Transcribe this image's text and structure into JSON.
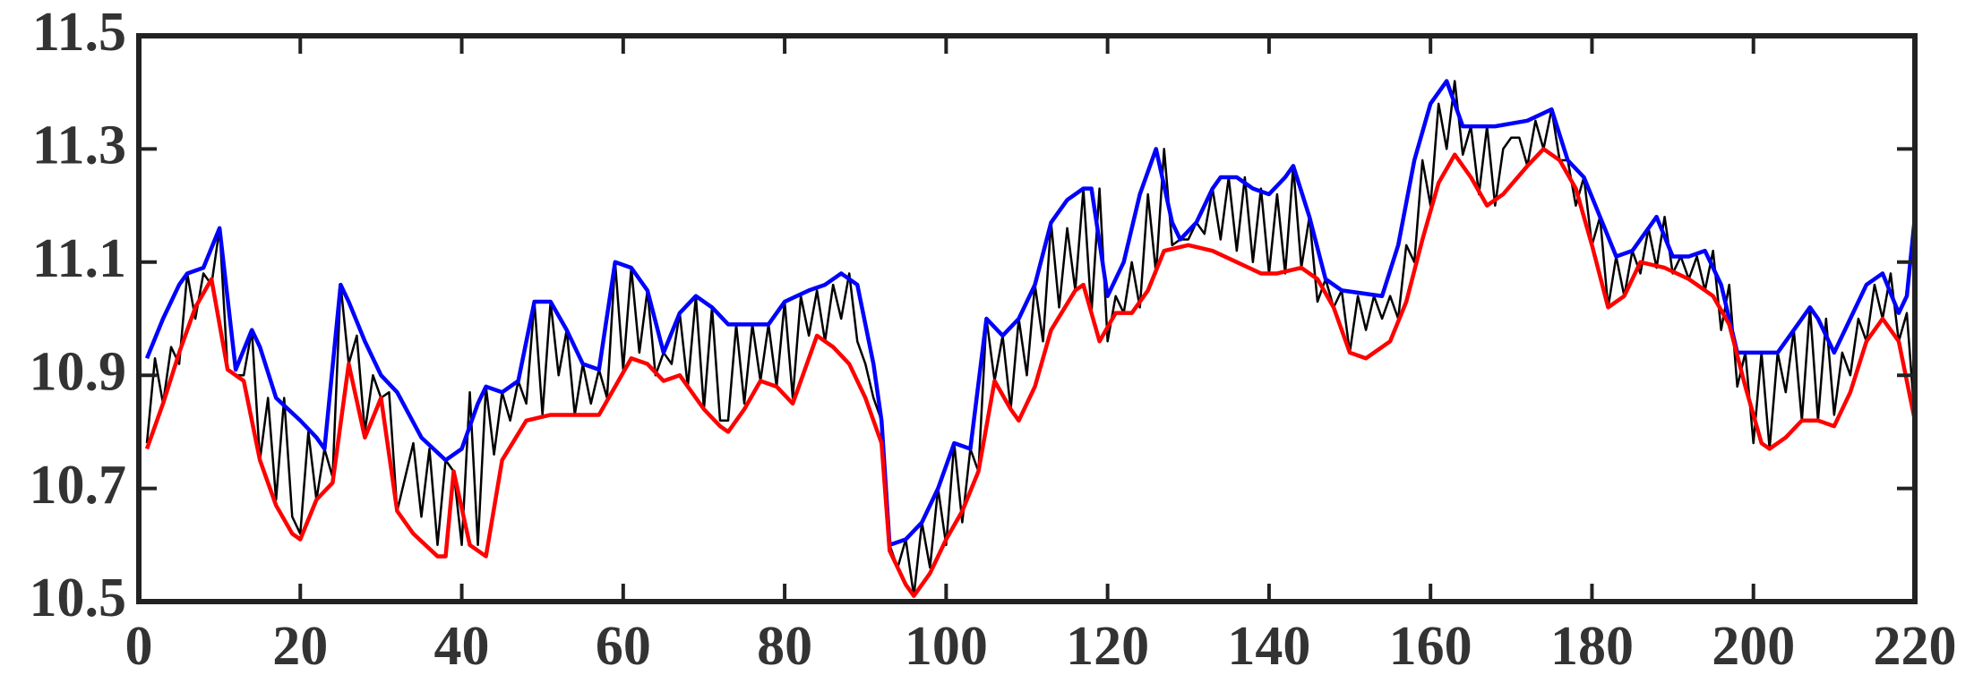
{
  "chart_data": {
    "type": "line",
    "xlim": [
      0,
      220
    ],
    "xticks": [
      0,
      20,
      40,
      60,
      80,
      100,
      120,
      140,
      160,
      180,
      200,
      220
    ],
    "ylim": [
      10.5,
      11.5
    ],
    "yticks": [
      10.5,
      10.7,
      10.9,
      11.1,
      11.3,
      11.5
    ],
    "grid": false,
    "series": [
      {
        "color": "#000000",
        "x": [
          1,
          2,
          3,
          4,
          5,
          6,
          7,
          8,
          9,
          10,
          11,
          12,
          13,
          14,
          15,
          16,
          17,
          18,
          19,
          20,
          21,
          22,
          23,
          24,
          25,
          26,
          27,
          28,
          29,
          30,
          31,
          32,
          33,
          34,
          35,
          36,
          37,
          38,
          39,
          40,
          41,
          42,
          43,
          44,
          45,
          46,
          47,
          48,
          49,
          50,
          51,
          52,
          53,
          54,
          55,
          56,
          57,
          58,
          59,
          60,
          61,
          62,
          63,
          64,
          65,
          66,
          67,
          68,
          69,
          70,
          71,
          72,
          73,
          74,
          75,
          76,
          77,
          78,
          79,
          80,
          81,
          82,
          83,
          84,
          85,
          86,
          87,
          88,
          89,
          90,
          91,
          92,
          93,
          94,
          95,
          96,
          97,
          98,
          99,
          100,
          101,
          102,
          103,
          104,
          105,
          106,
          107,
          108,
          109,
          110,
          111,
          112,
          113,
          114,
          115,
          116,
          117,
          118,
          119,
          120,
          121,
          122,
          123,
          124,
          125,
          126,
          127,
          128,
          129,
          130,
          131,
          132,
          133,
          134,
          135,
          136,
          137,
          138,
          139,
          140,
          141,
          142,
          143,
          144,
          145,
          146,
          147,
          148,
          149,
          150,
          151,
          152,
          153,
          154,
          155,
          156,
          157,
          158,
          159,
          160,
          161,
          162,
          163,
          164,
          165,
          166,
          167,
          168,
          169,
          170,
          171,
          172,
          173,
          174,
          175,
          176,
          177,
          178,
          179,
          180,
          181,
          182,
          183,
          184,
          185,
          186,
          187,
          188,
          189,
          190,
          191,
          192,
          193,
          194,
          195,
          196,
          197,
          198,
          199,
          200,
          201,
          202,
          203,
          204,
          205,
          206,
          207,
          208,
          209,
          210,
          211,
          212,
          213,
          214,
          215,
          216,
          217,
          218,
          219,
          220
        ],
        "values": [
          10.78,
          10.93,
          10.85,
          10.95,
          10.92,
          11.08,
          11.0,
          11.08,
          11.06,
          11.16,
          10.91,
          10.9,
          10.9,
          10.98,
          10.75,
          10.86,
          10.68,
          10.86,
          10.65,
          10.62,
          10.8,
          10.68,
          10.77,
          10.72,
          11.06,
          10.92,
          10.97,
          10.8,
          10.9,
          10.86,
          10.87,
          10.66,
          10.72,
          10.78,
          10.65,
          10.77,
          10.6,
          10.75,
          10.73,
          10.6,
          10.87,
          10.6,
          10.88,
          10.76,
          10.87,
          10.82,
          10.89,
          10.85,
          11.03,
          10.83,
          11.03,
          10.9,
          10.98,
          10.83,
          10.92,
          10.85,
          10.91,
          10.86,
          11.1,
          10.91,
          11.09,
          10.94,
          11.05,
          10.9,
          10.94,
          10.92,
          11.01,
          10.88,
          11.04,
          10.84,
          11.02,
          10.82,
          10.82,
          10.99,
          10.85,
          10.99,
          10.89,
          10.99,
          10.88,
          11.03,
          10.86,
          11.04,
          10.97,
          11.05,
          10.96,
          11.06,
          11.0,
          11.08,
          10.96,
          10.92,
          10.86,
          10.82,
          10.6,
          10.56,
          10.61,
          10.51,
          10.64,
          10.56,
          10.7,
          10.6,
          10.78,
          10.64,
          10.77,
          10.73,
          11.0,
          10.89,
          10.97,
          10.84,
          11.0,
          10.9,
          11.06,
          10.96,
          11.17,
          11.02,
          11.16,
          11.05,
          11.23,
          11.01,
          11.23,
          10.96,
          11.04,
          11.01,
          11.1,
          11.02,
          11.22,
          11.08,
          11.3,
          11.13,
          11.14,
          11.14,
          11.17,
          11.15,
          11.23,
          11.14,
          11.25,
          11.12,
          11.25,
          11.1,
          11.23,
          11.08,
          11.22,
          11.08,
          11.27,
          11.09,
          11.18,
          11.03,
          11.07,
          11.02,
          11.05,
          10.94,
          11.04,
          10.98,
          11.04,
          11.0,
          11.04,
          11.0,
          11.13,
          11.1,
          11.28,
          11.2,
          11.38,
          11.3,
          11.42,
          11.29,
          11.34,
          11.22,
          11.34,
          11.2,
          11.3,
          11.32,
          11.32,
          11.27,
          11.35,
          11.3,
          11.37,
          11.28,
          11.28,
          11.2,
          11.25,
          11.13,
          11.18,
          11.02,
          11.11,
          11.04,
          11.12,
          11.08,
          11.16,
          11.09,
          11.18,
          11.08,
          11.11,
          11.07,
          11.11,
          11.05,
          11.12,
          10.98,
          11.06,
          10.88,
          10.94,
          10.78,
          10.94,
          10.77,
          10.94,
          10.87,
          10.98,
          10.82,
          11.02,
          10.82,
          11.0,
          10.83,
          10.94,
          10.9,
          11.0,
          10.96,
          11.06,
          11.0,
          11.08,
          10.96,
          11.01,
          10.82
        ]
      },
      {
        "color": "#0000ff",
        "x": [
          1,
          3,
          5,
          6,
          8,
          10,
          12,
          14,
          15,
          17,
          20,
          22,
          23,
          25,
          26,
          28,
          30,
          32,
          35,
          38,
          40,
          42,
          43,
          45,
          47,
          49,
          51,
          53,
          55,
          57,
          59,
          61,
          63,
          65,
          67,
          69,
          71,
          73,
          76,
          78,
          80,
          83,
          85,
          87,
          89,
          91,
          92,
          93,
          95,
          97,
          99,
          101,
          103,
          105,
          107,
          109,
          111,
          113,
          115,
          117,
          118,
          120,
          122,
          124,
          126,
          128,
          129,
          131,
          133,
          134,
          136,
          138,
          140,
          142,
          143,
          145,
          147,
          149,
          154,
          156,
          158,
          160,
          162,
          164,
          168,
          172,
          175,
          177,
          179,
          181,
          183,
          185,
          187,
          188,
          190,
          192,
          194,
          196,
          198,
          200,
          203,
          205,
          207,
          208,
          210,
          212,
          214,
          216,
          218,
          219,
          220
        ],
        "values": [
          10.93,
          11.0,
          11.06,
          11.08,
          11.09,
          11.16,
          10.91,
          10.98,
          10.95,
          10.86,
          10.82,
          10.79,
          10.77,
          11.06,
          11.03,
          10.96,
          10.9,
          10.87,
          10.79,
          10.75,
          10.77,
          10.85,
          10.88,
          10.87,
          10.89,
          11.03,
          11.03,
          10.98,
          10.92,
          10.91,
          11.1,
          11.09,
          11.05,
          10.94,
          11.01,
          11.04,
          11.02,
          10.99,
          10.99,
          10.99,
          11.03,
          11.05,
          11.06,
          11.08,
          11.06,
          10.92,
          10.82,
          10.6,
          10.61,
          10.64,
          10.7,
          10.78,
          10.77,
          11.0,
          10.97,
          11.0,
          11.06,
          11.17,
          11.21,
          11.23,
          11.23,
          11.04,
          11.1,
          11.22,
          11.3,
          11.17,
          11.14,
          11.17,
          11.23,
          11.25,
          11.25,
          11.23,
          11.22,
          11.25,
          11.27,
          11.18,
          11.07,
          11.05,
          11.04,
          11.13,
          11.28,
          11.38,
          11.42,
          11.34,
          11.34,
          11.35,
          11.37,
          11.28,
          11.25,
          11.18,
          11.11,
          11.12,
          11.16,
          11.18,
          11.11,
          11.11,
          11.12,
          11.06,
          10.94,
          10.94,
          10.94,
          10.98,
          11.02,
          11.0,
          10.94,
          11.0,
          11.06,
          11.08,
          11.01,
          11.04,
          11.18
        ]
      },
      {
        "color": "#ff0000",
        "x": [
          1,
          3,
          5,
          7,
          9,
          11,
          13,
          15,
          17,
          19,
          20,
          22,
          24,
          26,
          28,
          30,
          31,
          32,
          34,
          37,
          38,
          39,
          41,
          43,
          45,
          48,
          51,
          55,
          57,
          59,
          61,
          63,
          65,
          67,
          70,
          72,
          73,
          75,
          77,
          79,
          81,
          84,
          86,
          88,
          90,
          92,
          93,
          95,
          96,
          98,
          100,
          102,
          104,
          106,
          108,
          109,
          111,
          113,
          116,
          117,
          118,
          119,
          121,
          123,
          125,
          127,
          130,
          133,
          136,
          139,
          141,
          144,
          146,
          148,
          150,
          152,
          155,
          157,
          159,
          161,
          163,
          165,
          167,
          169,
          172,
          174,
          176,
          178,
          180,
          182,
          184,
          186,
          189,
          192,
          195,
          197,
          199,
          201,
          202,
          204,
          206,
          208,
          210,
          212,
          214,
          216,
          218,
          220
        ],
        "values": [
          10.77,
          10.85,
          10.94,
          11.02,
          11.07,
          10.91,
          10.89,
          10.75,
          10.67,
          10.62,
          10.61,
          10.68,
          10.71,
          10.92,
          10.79,
          10.86,
          10.76,
          10.66,
          10.62,
          10.58,
          10.58,
          10.73,
          10.6,
          10.58,
          10.75,
          10.82,
          10.83,
          10.83,
          10.83,
          10.88,
          10.93,
          10.92,
          10.89,
          10.9,
          10.84,
          10.81,
          10.8,
          10.84,
          10.89,
          10.88,
          10.85,
          10.97,
          10.95,
          10.92,
          10.86,
          10.78,
          10.59,
          10.53,
          10.51,
          10.55,
          10.61,
          10.66,
          10.73,
          10.89,
          10.84,
          10.82,
          10.88,
          10.98,
          11.05,
          11.06,
          11.01,
          10.96,
          11.01,
          11.01,
          11.05,
          11.12,
          11.13,
          11.12,
          11.1,
          11.08,
          11.08,
          11.09,
          11.07,
          11.02,
          10.94,
          10.93,
          10.96,
          11.03,
          11.14,
          11.24,
          11.29,
          11.25,
          11.2,
          11.22,
          11.27,
          11.3,
          11.28,
          11.23,
          11.13,
          11.02,
          11.04,
          11.1,
          11.09,
          11.07,
          11.04,
          10.99,
          10.88,
          10.78,
          10.77,
          10.79,
          10.82,
          10.82,
          10.81,
          10.87,
          10.96,
          11.0,
          10.96,
          10.82
        ]
      }
    ]
  }
}
